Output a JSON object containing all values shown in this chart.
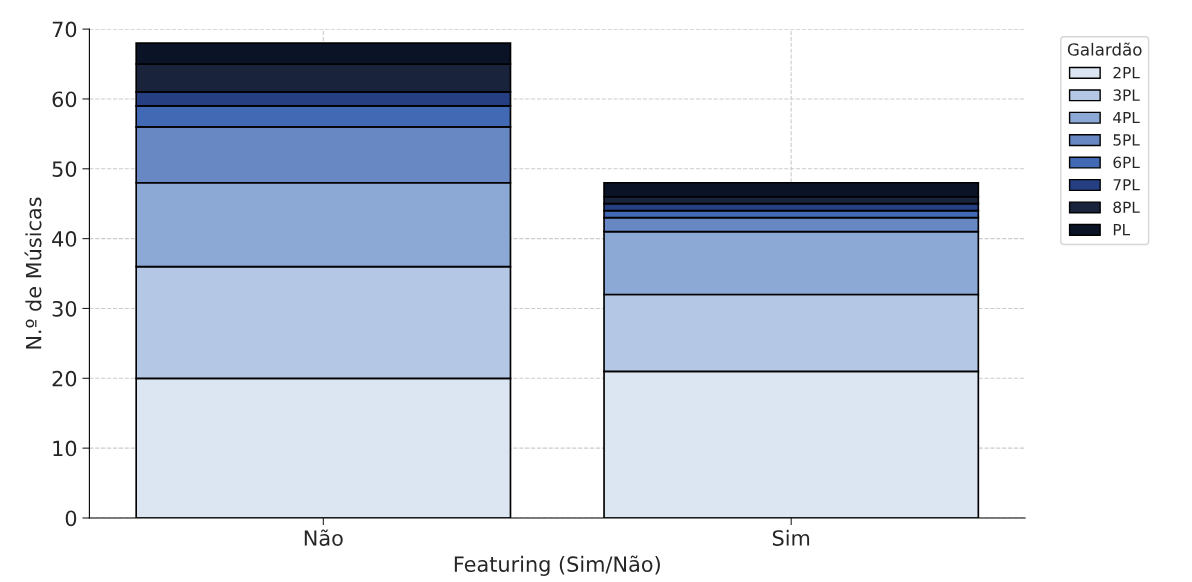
{
  "chart_data": {
    "type": "bar",
    "stacked": true,
    "xlabel": "Featuring (Sim/Não)",
    "ylabel": "N.º de Músicas",
    "legend_title": "Galardão",
    "legend": "top right",
    "grid": true,
    "categories": [
      "Não",
      "Sim"
    ],
    "ylim": [
      0,
      70
    ],
    "yticks": [
      0,
      10,
      20,
      30,
      40,
      50,
      60,
      70
    ],
    "series": [
      {
        "name": "2PL",
        "color": "#dce6f2",
        "values": [
          20,
          21
        ]
      },
      {
        "name": "3PL",
        "color": "#b4c7e4",
        "values": [
          16,
          11
        ]
      },
      {
        "name": "4PL",
        "color": "#8ca8d4",
        "values": [
          12,
          9
        ]
      },
      {
        "name": "5PL",
        "color": "#6888c4",
        "values": [
          8,
          2
        ]
      },
      {
        "name": "6PL",
        "color": "#4169b4",
        "values": [
          3,
          1
        ]
      },
      {
        "name": "7PL",
        "color": "#263f82",
        "values": [
          2,
          1
        ]
      },
      {
        "name": "8PL",
        "color": "#1a233c",
        "values": [
          4,
          1
        ]
      },
      {
        "name": "PL",
        "color": "#0b1426",
        "values": [
          3,
          2
        ]
      }
    ]
  }
}
